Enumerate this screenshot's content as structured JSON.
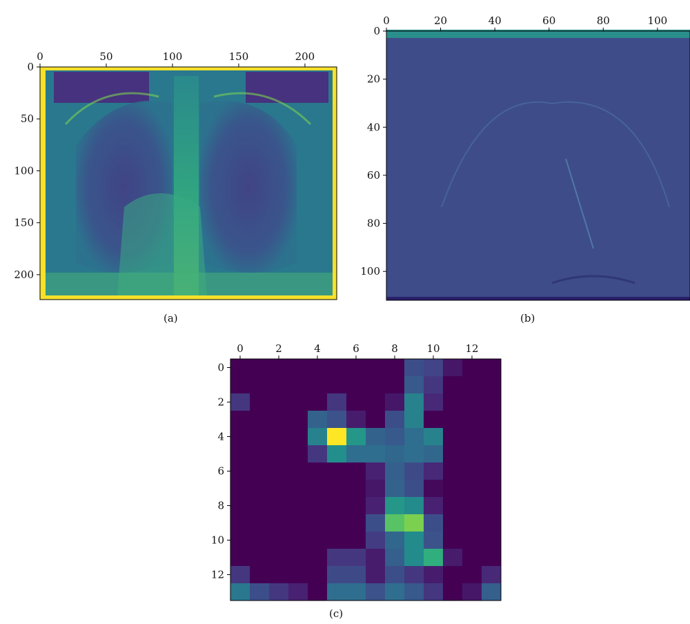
{
  "figure": {
    "panels": [
      {
        "caption": "(a)",
        "xlim": [
          0,
          224
        ],
        "ylim": [
          0,
          224
        ],
        "xticks": [
          0,
          50,
          100,
          150,
          200
        ],
        "yticks": [
          0,
          50,
          100,
          150,
          200
        ],
        "content": "chest-xray-input"
      },
      {
        "caption": "(b)",
        "xlim": [
          0,
          112
        ],
        "ylim": [
          0,
          112
        ],
        "xticks": [
          0,
          20,
          40,
          60,
          80,
          100
        ],
        "yticks": [
          0,
          20,
          40,
          60,
          80,
          100
        ],
        "content": "feature-map"
      },
      {
        "caption": "(c)",
        "xlim": [
          -0.5,
          13.5
        ],
        "ylim": [
          -0.5,
          13.5
        ],
        "xticks": [
          0,
          2,
          4,
          6,
          8,
          10,
          12
        ],
        "yticks": [
          0,
          2,
          4,
          6,
          8,
          10,
          12
        ],
        "content": "activation-heatmap",
        "heatmap": [
          [
            0,
            0,
            0,
            0,
            0,
            0,
            0,
            0,
            0,
            0.3,
            0.25,
            0.08,
            0,
            0
          ],
          [
            0,
            0,
            0,
            0,
            0,
            0,
            0,
            0,
            0,
            0.35,
            0.2,
            0,
            0,
            0
          ],
          [
            0.2,
            0,
            0,
            0,
            0,
            0.2,
            0,
            0,
            0.08,
            0.55,
            0.15,
            0,
            0,
            0
          ],
          [
            0,
            0,
            0,
            0,
            0.4,
            0.32,
            0.1,
            0,
            0.3,
            0.55,
            0,
            0,
            0,
            0
          ],
          [
            0,
            0,
            0,
            0,
            0.55,
            1.0,
            0.65,
            0.4,
            0.35,
            0.45,
            0.55,
            0,
            0,
            0
          ],
          [
            0,
            0,
            0,
            0,
            0.2,
            0.62,
            0.45,
            0.45,
            0.42,
            0.45,
            0.42,
            0,
            0,
            0
          ],
          [
            0,
            0,
            0,
            0,
            0,
            0,
            0,
            0.12,
            0.38,
            0.28,
            0.15,
            0,
            0,
            0
          ],
          [
            0,
            0,
            0,
            0,
            0,
            0,
            0,
            0.08,
            0.4,
            0.3,
            0.03,
            0,
            0,
            0
          ],
          [
            0,
            0,
            0,
            0,
            0,
            0,
            0,
            0.12,
            0.65,
            0.6,
            0.12,
            0,
            0,
            0
          ],
          [
            0,
            0,
            0,
            0,
            0,
            0,
            0,
            0.3,
            0.8,
            0.85,
            0.3,
            0,
            0,
            0
          ],
          [
            0,
            0,
            0,
            0,
            0,
            0,
            0,
            0.22,
            0.42,
            0.6,
            0.32,
            0,
            0,
            0
          ],
          [
            0,
            0,
            0,
            0,
            0,
            0.2,
            0.2,
            0.1,
            0.38,
            0.6,
            0.72,
            0.1,
            0,
            0
          ],
          [
            0.2,
            0,
            0,
            0,
            0,
            0.28,
            0.28,
            0.1,
            0.3,
            0.2,
            0.1,
            0,
            0,
            0.15
          ],
          [
            0.5,
            0.3,
            0.2,
            0.12,
            0,
            0.45,
            0.45,
            0.32,
            0.45,
            0.35,
            0.2,
            0,
            0.08,
            0.38
          ]
        ]
      }
    ]
  }
}
